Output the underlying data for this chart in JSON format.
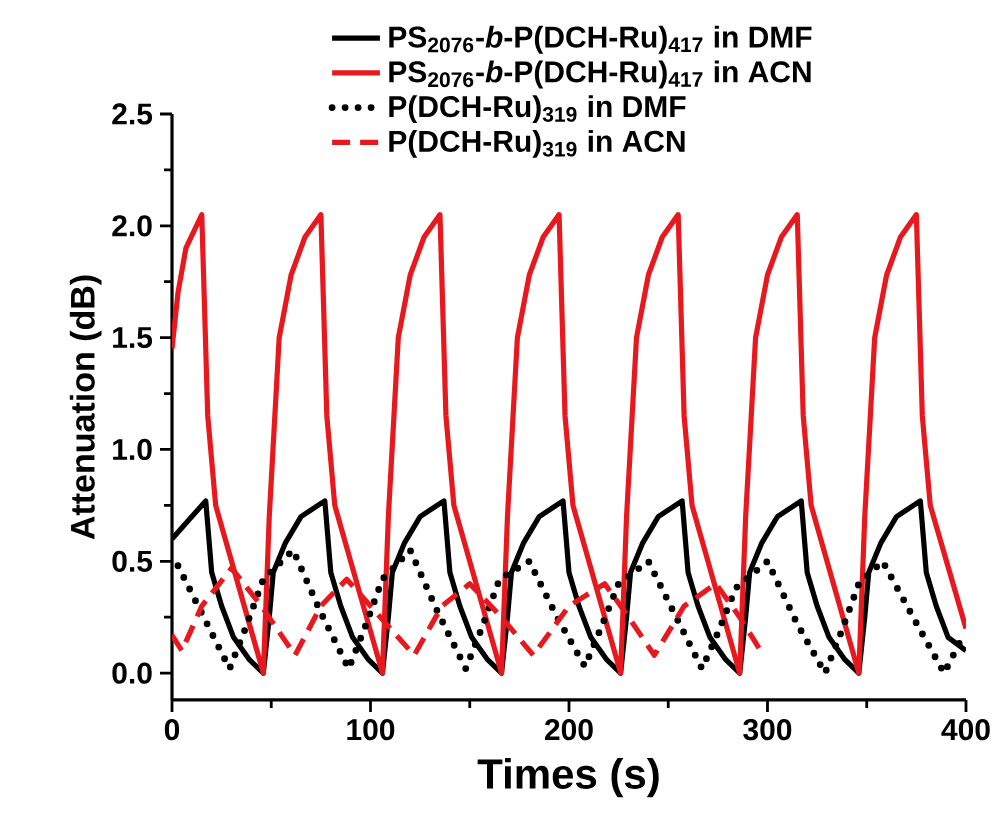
{
  "chart_data": {
    "type": "line",
    "xlabel": "Times (s)",
    "ylabel": "Attenuation (dB)",
    "xlim": [
      0,
      400
    ],
    "ylim": [
      -0.12,
      2.5
    ],
    "xticks": [
      0,
      100,
      200,
      300,
      400
    ],
    "yticks": [
      {
        "value": 0,
        "label": "0.0"
      },
      {
        "value": 0.5,
        "label": "0.5"
      },
      {
        "value": 1,
        "label": "1.0"
      },
      {
        "value": 1.5,
        "label": "1.5"
      },
      {
        "value": 2,
        "label": "2.0"
      },
      {
        "value": 2.5,
        "label": "2.5"
      }
    ],
    "legend": "top right",
    "marker": "none",
    "series": [
      {
        "name": "PS$_{2076}$-*b*-P(DCH-Ru)$_{417}$ in DMF",
        "color": "#000000",
        "line_style": "solid",
        "x": [
          0,
          8,
          17,
          20,
          25,
          31,
          39,
          46,
          49,
          51,
          57,
          65,
          77,
          80,
          85,
          91,
          99,
          106,
          109,
          111,
          117,
          125,
          137,
          140,
          145,
          151,
          159,
          166,
          169,
          171,
          177,
          185,
          197,
          200,
          205,
          211,
          219,
          226,
          229,
          231,
          237,
          245,
          257,
          260,
          265,
          271,
          279,
          286,
          289,
          291,
          297,
          305,
          317,
          320,
          325,
          331,
          339,
          346,
          349,
          351,
          357,
          365,
          377,
          380,
          385,
          391,
          400
        ],
        "values": [
          0.6,
          0.68,
          0.77,
          0.45,
          0.3,
          0.16,
          0.06,
          0,
          0.25,
          0.45,
          0.58,
          0.7,
          0.77,
          0.45,
          0.3,
          0.16,
          0.06,
          0,
          0.25,
          0.45,
          0.58,
          0.7,
          0.77,
          0.45,
          0.3,
          0.16,
          0.06,
          0,
          0.25,
          0.45,
          0.58,
          0.7,
          0.77,
          0.45,
          0.3,
          0.16,
          0.06,
          0,
          0.25,
          0.45,
          0.58,
          0.7,
          0.77,
          0.45,
          0.3,
          0.16,
          0.06,
          0,
          0.25,
          0.45,
          0.58,
          0.7,
          0.77,
          0.45,
          0.3,
          0.16,
          0.06,
          0,
          0.25,
          0.45,
          0.58,
          0.7,
          0.77,
          0.45,
          0.3,
          0.16,
          0.1
        ]
      },
      {
        "name": "PS$_{2076}$-*b*-P(DCH-Ru)$_{417}$ in ACN",
        "color": "#e8191e",
        "line_style": "solid",
        "x": [
          0,
          3,
          7,
          15,
          18,
          22,
          46,
          49,
          54,
          60,
          67,
          75,
          78,
          82,
          106,
          109,
          114,
          120,
          127,
          135,
          138,
          142,
          166,
          169,
          174,
          180,
          187,
          195,
          198,
          202,
          226,
          229,
          234,
          240,
          247,
          255,
          258,
          262,
          286,
          289,
          294,
          300,
          307,
          315,
          318,
          322,
          346,
          349,
          354,
          360,
          367,
          375,
          378,
          382,
          400
        ],
        "values": [
          1.45,
          1.7,
          1.9,
          2.05,
          1.15,
          0.75,
          0,
          0.7,
          1.5,
          1.78,
          1.95,
          2.05,
          1.15,
          0.75,
          0,
          0.7,
          1.5,
          1.78,
          1.95,
          2.05,
          1.15,
          0.75,
          0,
          0.7,
          1.5,
          1.78,
          1.95,
          2.05,
          1.15,
          0.75,
          0,
          0.7,
          1.5,
          1.78,
          1.95,
          2.05,
          1.15,
          0.75,
          0,
          0.7,
          1.5,
          1.78,
          1.95,
          2.05,
          1.15,
          0.75,
          0,
          0.7,
          1.5,
          1.78,
          1.95,
          2.05,
          1.15,
          0.75,
          0.2
        ]
      },
      {
        "name": "P(DCH-Ru)$_{319}$ in DMF",
        "color": "#000000",
        "line_style": "dotted",
        "x": [
          3,
          16,
          29,
          37,
          46,
          61,
          75,
          89,
          97,
          106,
          120,
          134,
          148,
          156,
          165,
          180,
          194,
          208,
          216,
          225,
          240,
          254,
          267,
          275,
          284,
          300,
          315,
          329,
          337,
          346,
          358,
          374,
          389,
          397
        ],
        "values": [
          0.48,
          0.25,
          0.02,
          0.2,
          0.42,
          0.55,
          0.27,
          0.02,
          0.2,
          0.42,
          0.55,
          0.27,
          0.02,
          0.2,
          0.42,
          0.5,
          0.25,
          0.03,
          0.2,
          0.4,
          0.5,
          0.25,
          0.02,
          0.18,
          0.38,
          0.5,
          0.22,
          0,
          0.18,
          0.4,
          0.5,
          0.24,
          0,
          0.14
        ]
      },
      {
        "name": "P(DCH-Ru)$_{319}$ in ACN",
        "color": "#e8191e",
        "line_style": "dashed",
        "x": [
          0,
          5,
          15,
          30,
          45,
          62,
          75,
          88,
          105,
          122,
          136,
          150,
          166,
          182,
          200,
          218,
          230,
          243,
          258,
          274,
          286,
          298
        ],
        "values": [
          0.17,
          0.1,
          0.3,
          0.47,
          0.3,
          0.08,
          0.3,
          0.42,
          0.25,
          0.08,
          0.3,
          0.4,
          0.25,
          0.08,
          0.3,
          0.4,
          0.25,
          0.08,
          0.3,
          0.4,
          0.25,
          0.08
        ]
      }
    ]
  }
}
